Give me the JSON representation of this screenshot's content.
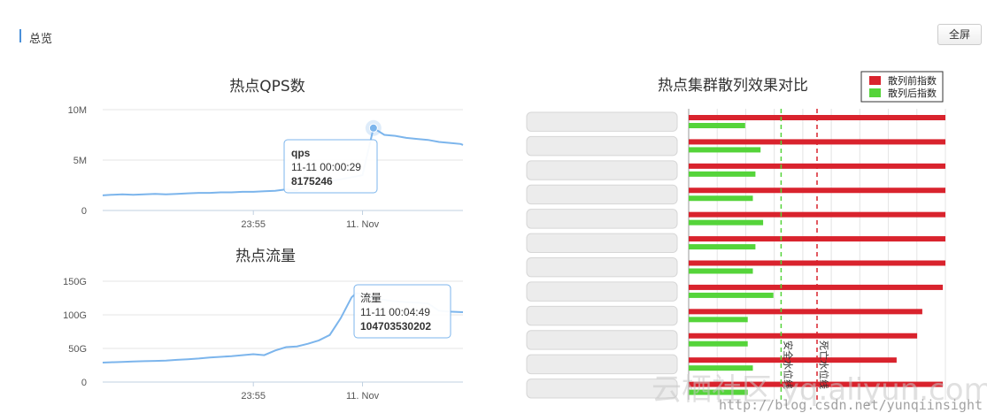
{
  "header": {
    "title": "总览",
    "fullscreen_label": "全屏"
  },
  "colors": {
    "line": "#7cb5ec",
    "red": "#d9232d",
    "green": "#55d43a",
    "accent": "#4a90d9"
  },
  "chart_data": [
    {
      "type": "line",
      "title": "热点QPS数",
      "xlabel": "",
      "ylabel": "",
      "yticks": [
        "0",
        "5M",
        "10M"
      ],
      "yunit": 1000000,
      "ylim": [
        0,
        10000000
      ],
      "xticks": [
        "23:55",
        "11. Nov"
      ],
      "xtick_minutes": [
        -5,
        0
      ],
      "xlim_minutes": [
        -11.9,
        4.6
      ],
      "series": [
        {
          "x_minutes": [
            -11.9,
            -11.5,
            -11,
            -10.5,
            -10,
            -9.5,
            -9,
            -8.5,
            -8,
            -7.5,
            -7,
            -6.5,
            -6,
            -5.5,
            -5,
            -4.5,
            -4,
            -3.5,
            -3,
            -2.5,
            -2,
            -1.5,
            -1,
            -0.5,
            0,
            0.5,
            1,
            1.5,
            2,
            2.5,
            3,
            3.5,
            4,
            4.5,
            4.6
          ],
          "values": [
            1500000,
            1550000,
            1600000,
            1550000,
            1600000,
            1650000,
            1600000,
            1650000,
            1700000,
            1750000,
            1750000,
            1800000,
            1800000,
            1850000,
            1850000,
            1900000,
            1950000,
            2100000,
            2000000,
            2600000,
            3000000,
            2900000,
            3100000,
            3300000,
            3500000,
            8175246,
            7500000,
            7400000,
            7200000,
            7100000,
            7000000,
            6800000,
            6700000,
            6600000,
            6500000
          ]
        }
      ],
      "tooltip": {
        "series": "qps",
        "time": "11-11 00:00:29",
        "value": "8175246"
      }
    },
    {
      "type": "line",
      "title": "热点流量",
      "xlabel": "",
      "ylabel": "",
      "yticks": [
        "0",
        "50G",
        "100G",
        "150G"
      ],
      "yunit": 1000000000,
      "ylim": [
        0,
        150000000000
      ],
      "xticks": [
        "23:55",
        "11. Nov"
      ],
      "xtick_minutes": [
        -5,
        0
      ],
      "xlim_minutes": [
        -11.9,
        4.6
      ],
      "series": [
        {
          "x_minutes": [
            -11.9,
            -11.5,
            -11,
            -10.5,
            -10,
            -9.5,
            -9,
            -8.5,
            -8,
            -7.5,
            -7,
            -6.5,
            -6,
            -5.5,
            -5,
            -4.5,
            -4,
            -3.5,
            -3,
            -2.5,
            -2,
            -1.5,
            -1,
            -0.5,
            -0.3,
            0,
            0.3,
            0.6,
            1,
            1.5,
            2,
            2.5,
            3,
            3.5,
            4,
            4.6
          ],
          "values": [
            29000000000,
            29500000000,
            30000000000,
            30500000000,
            31000000000,
            31500000000,
            32000000000,
            33000000000,
            34000000000,
            35000000000,
            36500000000,
            37500000000,
            38500000000,
            40000000000,
            41500000000,
            40000000000,
            47000000000,
            52000000000,
            53000000000,
            57000000000,
            62000000000,
            70000000000,
            95000000000,
            126000000000,
            132000000000,
            131000000000,
            127000000000,
            124000000000,
            122000000000,
            120000000000,
            119000000000,
            118000000000,
            117000000000,
            106000000000,
            104703530202,
            104000000000
          ]
        }
      ],
      "tooltip": {
        "series": "流量",
        "time": "11-11 00:04:49",
        "value": "104703530202"
      }
    },
    {
      "type": "bar",
      "title": "热点集群散列效果对比",
      "orientation": "horizontal",
      "categories": [
        "",
        "",
        "",
        "",
        "",
        "",
        "",
        "",
        "",
        "",
        "",
        ""
      ],
      "series": [
        {
          "name": "散列前指数",
          "values": [
            100,
            100,
            100,
            100,
            100,
            100,
            100,
            99,
            91,
            89,
            81,
            99
          ]
        },
        {
          "name": "散列后指数",
          "values": [
            22,
            28,
            26,
            25,
            29,
            26,
            25,
            33,
            23,
            23,
            25,
            23
          ]
        }
      ],
      "xlim": [
        0,
        100
      ],
      "reference_lines": [
        {
          "label": "安全水位线",
          "value": 36,
          "color": "#55d43a"
        },
        {
          "label": "死亡水位线",
          "value": 50,
          "color": "#d9232d"
        }
      ],
      "legend_position": "top-right"
    }
  ],
  "watermark": {
    "brand": "云栖社区 yq.aliyun.com",
    "url": "http://blog.csdn.net/yunqiinsight"
  }
}
